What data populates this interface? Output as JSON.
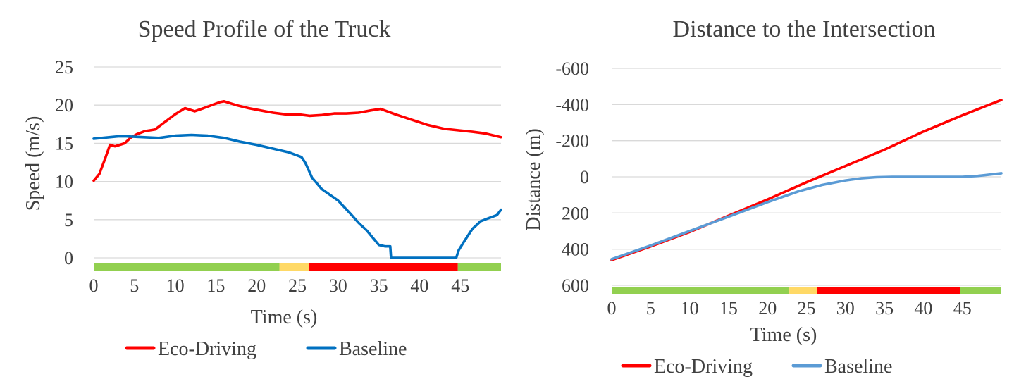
{
  "chart_data": [
    {
      "type": "line",
      "title": "Speed Profile of the Truck",
      "xlabel": "Time (s)",
      "ylabel": "Speed (m/s)",
      "xlim": [
        0,
        50
      ],
      "ylim": [
        0,
        25
      ],
      "x_ticks": [
        0,
        5,
        10,
        15,
        20,
        25,
        30,
        35,
        40,
        45
      ],
      "y_ticks": [
        0,
        5,
        10,
        15,
        20,
        25
      ],
      "grid": true,
      "legend_position": "bottom",
      "signal_phases": [
        {
          "state": "green",
          "start": 0,
          "end": 22.8,
          "color": "#92d050"
        },
        {
          "state": "yellow",
          "start": 22.8,
          "end": 26.4,
          "color": "#ffd966"
        },
        {
          "state": "red",
          "start": 26.4,
          "end": 44.7,
          "color": "#ff0000"
        },
        {
          "state": "green",
          "start": 44.7,
          "end": 50,
          "color": "#92d050"
        }
      ],
      "series": [
        {
          "name": "Eco-Driving",
          "color": "#ff0000",
          "x": [
            0,
            0.7,
            1.4,
            2.0,
            2.6,
            3.2,
            3.8,
            4.5,
            5.3,
            6.3,
            7.5,
            9.0,
            10.0,
            11.2,
            12.4,
            13.5,
            14.5,
            15.5,
            16.0,
            17.5,
            19.0,
            20.5,
            22.0,
            23.5,
            25.0,
            26.5,
            28.0,
            29.5,
            31.0,
            32.5,
            34.0,
            35.2,
            36.0,
            37.0,
            39.0,
            41.0,
            43.0,
            44.8,
            46.5,
            48.0,
            50.0
          ],
          "y": [
            10.1,
            11.0,
            13.0,
            14.8,
            14.6,
            14.8,
            15.0,
            15.7,
            16.2,
            16.6,
            16.8,
            18.0,
            18.8,
            19.6,
            19.2,
            19.6,
            20.0,
            20.4,
            20.5,
            20.0,
            19.6,
            19.3,
            19.0,
            18.8,
            18.8,
            18.6,
            18.7,
            18.9,
            18.9,
            19.0,
            19.3,
            19.5,
            19.2,
            18.8,
            18.1,
            17.4,
            16.9,
            16.7,
            16.5,
            16.3,
            15.8
          ]
        },
        {
          "name": "Baseline",
          "color": "#0070c0",
          "x": [
            0,
            1.0,
            2.0,
            3.0,
            4.0,
            6.0,
            8.0,
            10.0,
            12.0,
            14.0,
            16.0,
            18.0,
            20.0,
            22.0,
            24.0,
            25.5,
            26.0,
            26.8,
            28.0,
            30.0,
            31.5,
            32.5,
            33.5,
            35.0,
            35.8,
            36.4,
            36.5,
            38.0,
            40.0,
            42.0,
            43.5,
            44.5,
            44.8,
            45.5,
            46.5,
            47.5,
            48.5,
            49.5,
            50.0
          ],
          "y": [
            15.6,
            15.7,
            15.8,
            15.9,
            15.9,
            15.8,
            15.7,
            16.0,
            16.1,
            16.0,
            15.7,
            15.2,
            14.8,
            14.3,
            13.8,
            13.2,
            12.4,
            10.5,
            9.0,
            7.5,
            5.8,
            4.6,
            3.6,
            1.7,
            1.5,
            1.5,
            0,
            0,
            0,
            0,
            0,
            0,
            1.0,
            2.2,
            3.8,
            4.8,
            5.2,
            5.6,
            6.3
          ]
        }
      ]
    },
    {
      "type": "line",
      "title": "Distance to the Intersection",
      "xlabel": "Time (s)",
      "ylabel": "Distance (m)",
      "xlim": [
        0,
        50
      ],
      "ylim": [
        600,
        -600
      ],
      "y_axis_reversed": true,
      "x_ticks": [
        0,
        5,
        10,
        15,
        20,
        25,
        30,
        35,
        40,
        45
      ],
      "y_ticks": [
        600,
        400,
        200,
        0,
        -200,
        -400,
        -600
      ],
      "grid": true,
      "legend_position": "bottom",
      "signal_phases": [
        {
          "state": "green",
          "start": 0,
          "end": 22.8,
          "color": "#92d050"
        },
        {
          "state": "yellow",
          "start": 22.8,
          "end": 26.4,
          "color": "#ffd966"
        },
        {
          "state": "red",
          "start": 26.4,
          "end": 44.7,
          "color": "#ff0000"
        },
        {
          "state": "green",
          "start": 44.7,
          "end": 50,
          "color": "#92d050"
        }
      ],
      "series": [
        {
          "name": "Eco-Driving",
          "color": "#ff0000",
          "x": [
            0,
            5,
            10,
            15,
            20,
            25,
            30,
            35,
            40,
            45,
            50
          ],
          "y": [
            460,
            385,
            305,
            215,
            125,
            30,
            -60,
            -150,
            -250,
            -340,
            -425
          ]
        },
        {
          "name": "Baseline",
          "color": "#5b9bd5",
          "x": [
            0,
            5,
            10,
            15,
            20,
            24,
            27,
            30,
            32,
            34,
            36,
            40,
            45,
            47,
            50
          ],
          "y": [
            455,
            380,
            300,
            220,
            140,
            80,
            45,
            20,
            8,
            2,
            0,
            0,
            0,
            -5,
            -20
          ]
        }
      ]
    }
  ]
}
